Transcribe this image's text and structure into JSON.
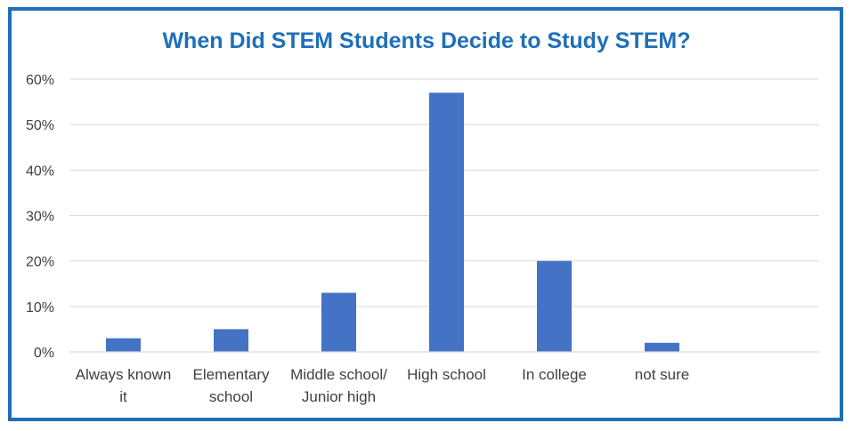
{
  "chart_data": {
    "type": "bar",
    "title": "When Did  STEM Students Decide to Study STEM?",
    "categories": [
      [
        "Always known",
        "it"
      ],
      [
        "Elementary",
        "school"
      ],
      [
        "Middle school/",
        "Junior high"
      ],
      [
        "High school"
      ],
      [
        "In college"
      ],
      [
        "not sure"
      ]
    ],
    "values": [
      3,
      5,
      13,
      57,
      20,
      2
    ],
    "ylim": [
      0,
      60
    ],
    "yticks": [
      0,
      10,
      20,
      30,
      40,
      50,
      60
    ],
    "ytick_labels": [
      "0%",
      "10%",
      "20%",
      "30%",
      "40%",
      "50%",
      "60%"
    ],
    "xlabel": "",
    "ylabel": "",
    "grid": true,
    "bar_color": "#4472c4",
    "grid_color": "#d9d9d9",
    "title_color": "#1f6fb8",
    "frame_color": "#1f6fb8"
  }
}
